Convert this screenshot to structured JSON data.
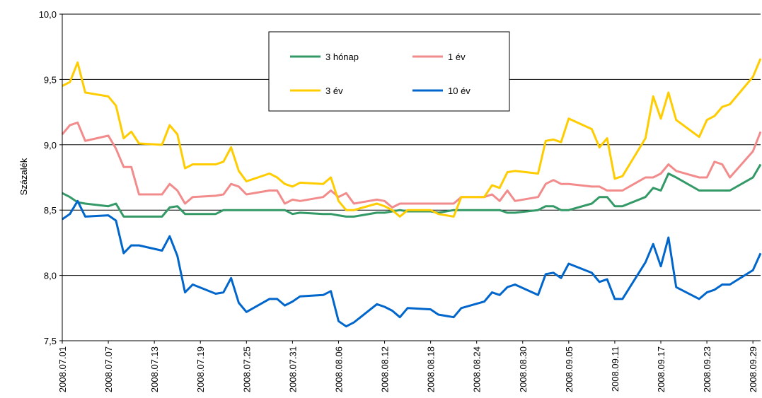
{
  "chart_data": {
    "type": "line",
    "ylabel": "Százalék",
    "ylim": [
      7.5,
      10.0
    ],
    "y_ticks": [
      "10,0",
      "9,5",
      "9,0",
      "8,5",
      "8,0",
      "7,5"
    ],
    "x_tick_labels": [
      "2008.07.01",
      "2008.07.07",
      "2008.07.13",
      "2008.07.19",
      "2008.07.25",
      "2008.07.31",
      "2008.08.06",
      "2008.08.12",
      "2008.08.18",
      "2008.08.24",
      "2008.08.30",
      "2008.09.05",
      "2008.09.11",
      "2008.09.17",
      "2008.09.23",
      "2008.09.29"
    ],
    "x_range": [
      "2008.07.01",
      "2008.09.30"
    ],
    "grid": "horizontal",
    "legend_position": "top-center",
    "series": [
      {
        "name": "3 hónap",
        "color": "#339966",
        "points": [
          [
            "2008.07.01",
            8.63
          ],
          [
            "2008.07.02",
            8.6
          ],
          [
            "2008.07.03",
            8.56
          ],
          [
            "2008.07.04",
            8.55
          ],
          [
            "2008.07.07",
            8.53
          ],
          [
            "2008.07.08",
            8.55
          ],
          [
            "2008.07.09",
            8.45
          ],
          [
            "2008.07.10",
            8.45
          ],
          [
            "2008.07.11",
            8.45
          ],
          [
            "2008.07.14",
            8.45
          ],
          [
            "2008.07.15",
            8.52
          ],
          [
            "2008.07.16",
            8.53
          ],
          [
            "2008.07.17",
            8.47
          ],
          [
            "2008.07.18",
            8.47
          ],
          [
            "2008.07.21",
            8.47
          ],
          [
            "2008.07.22",
            8.5
          ],
          [
            "2008.07.23",
            8.5
          ],
          [
            "2008.07.24",
            8.5
          ],
          [
            "2008.07.25",
            8.5
          ],
          [
            "2008.07.28",
            8.5
          ],
          [
            "2008.07.29",
            8.5
          ],
          [
            "2008.07.30",
            8.5
          ],
          [
            "2008.07.31",
            8.47
          ],
          [
            "2008.08.01",
            8.48
          ],
          [
            "2008.08.04",
            8.47
          ],
          [
            "2008.08.05",
            8.47
          ],
          [
            "2008.08.06",
            8.46
          ],
          [
            "2008.08.07",
            8.45
          ],
          [
            "2008.08.08",
            8.45
          ],
          [
            "2008.08.11",
            8.48
          ],
          [
            "2008.08.12",
            8.48
          ],
          [
            "2008.08.13",
            8.49
          ],
          [
            "2008.08.14",
            8.5
          ],
          [
            "2008.08.15",
            8.49
          ],
          [
            "2008.08.18",
            8.49
          ],
          [
            "2008.08.19",
            8.48
          ],
          [
            "2008.08.21",
            8.5
          ],
          [
            "2008.08.22",
            8.5
          ],
          [
            "2008.08.25",
            8.5
          ],
          [
            "2008.08.26",
            8.5
          ],
          [
            "2008.08.27",
            8.5
          ],
          [
            "2008.08.28",
            8.48
          ],
          [
            "2008.08.29",
            8.48
          ],
          [
            "2008.09.01",
            8.5
          ],
          [
            "2008.09.02",
            8.53
          ],
          [
            "2008.09.03",
            8.53
          ],
          [
            "2008.09.04",
            8.5
          ],
          [
            "2008.09.05",
            8.5
          ],
          [
            "2008.09.08",
            8.55
          ],
          [
            "2008.09.09",
            8.6
          ],
          [
            "2008.09.10",
            8.6
          ],
          [
            "2008.09.11",
            8.53
          ],
          [
            "2008.09.12",
            8.53
          ],
          [
            "2008.09.15",
            8.6
          ],
          [
            "2008.09.16",
            8.67
          ],
          [
            "2008.09.17",
            8.65
          ],
          [
            "2008.09.18",
            8.78
          ],
          [
            "2008.09.19",
            8.75
          ],
          [
            "2008.09.22",
            8.65
          ],
          [
            "2008.09.23",
            8.65
          ],
          [
            "2008.09.24",
            8.65
          ],
          [
            "2008.09.25",
            8.65
          ],
          [
            "2008.09.26",
            8.65
          ],
          [
            "2008.09.29",
            8.75
          ],
          [
            "2008.09.30",
            8.85
          ]
        ]
      },
      {
        "name": "1 év",
        "color": "#f28c8c",
        "points": [
          [
            "2008.07.01",
            9.08
          ],
          [
            "2008.07.02",
            9.15
          ],
          [
            "2008.07.03",
            9.17
          ],
          [
            "2008.07.04",
            9.03
          ],
          [
            "2008.07.07",
            9.07
          ],
          [
            "2008.07.08",
            8.97
          ],
          [
            "2008.07.09",
            8.83
          ],
          [
            "2008.07.10",
            8.83
          ],
          [
            "2008.07.11",
            8.62
          ],
          [
            "2008.07.14",
            8.62
          ],
          [
            "2008.07.15",
            8.7
          ],
          [
            "2008.07.16",
            8.65
          ],
          [
            "2008.07.17",
            8.55
          ],
          [
            "2008.07.18",
            8.6
          ],
          [
            "2008.07.21",
            8.61
          ],
          [
            "2008.07.22",
            8.62
          ],
          [
            "2008.07.23",
            8.7
          ],
          [
            "2008.07.24",
            8.68
          ],
          [
            "2008.07.25",
            8.62
          ],
          [
            "2008.07.28",
            8.65
          ],
          [
            "2008.07.29",
            8.65
          ],
          [
            "2008.07.30",
            8.55
          ],
          [
            "2008.07.31",
            8.58
          ],
          [
            "2008.08.01",
            8.57
          ],
          [
            "2008.08.04",
            8.6
          ],
          [
            "2008.08.05",
            8.65
          ],
          [
            "2008.08.06",
            8.6
          ],
          [
            "2008.08.07",
            8.63
          ],
          [
            "2008.08.08",
            8.55
          ],
          [
            "2008.08.11",
            8.58
          ],
          [
            "2008.08.12",
            8.57
          ],
          [
            "2008.08.13",
            8.52
          ],
          [
            "2008.08.14",
            8.55
          ],
          [
            "2008.08.15",
            8.55
          ],
          [
            "2008.08.18",
            8.55
          ],
          [
            "2008.08.19",
            8.55
          ],
          [
            "2008.08.21",
            8.55
          ],
          [
            "2008.08.22",
            8.6
          ],
          [
            "2008.08.25",
            8.6
          ],
          [
            "2008.08.26",
            8.62
          ],
          [
            "2008.08.27",
            8.57
          ],
          [
            "2008.08.28",
            8.65
          ],
          [
            "2008.08.29",
            8.57
          ],
          [
            "2008.09.01",
            8.6
          ],
          [
            "2008.09.02",
            8.7
          ],
          [
            "2008.09.03",
            8.73
          ],
          [
            "2008.09.04",
            8.7
          ],
          [
            "2008.09.05",
            8.7
          ],
          [
            "2008.09.08",
            8.68
          ],
          [
            "2008.09.09",
            8.68
          ],
          [
            "2008.09.10",
            8.65
          ],
          [
            "2008.09.11",
            8.65
          ],
          [
            "2008.09.12",
            8.65
          ],
          [
            "2008.09.15",
            8.75
          ],
          [
            "2008.09.16",
            8.75
          ],
          [
            "2008.09.17",
            8.78
          ],
          [
            "2008.09.18",
            8.85
          ],
          [
            "2008.09.19",
            8.8
          ],
          [
            "2008.09.22",
            8.75
          ],
          [
            "2008.09.23",
            8.75
          ],
          [
            "2008.09.24",
            8.87
          ],
          [
            "2008.09.25",
            8.85
          ],
          [
            "2008.09.26",
            8.75
          ],
          [
            "2008.09.29",
            8.95
          ],
          [
            "2008.09.30",
            9.1
          ]
        ]
      },
      {
        "name": "3 év",
        "color": "#ffcc00",
        "points": [
          [
            "2008.07.01",
            9.45
          ],
          [
            "2008.07.02",
            9.48
          ],
          [
            "2008.07.03",
            9.63
          ],
          [
            "2008.07.04",
            9.4
          ],
          [
            "2008.07.07",
            9.37
          ],
          [
            "2008.07.08",
            9.3
          ],
          [
            "2008.07.09",
            9.05
          ],
          [
            "2008.07.10",
            9.1
          ],
          [
            "2008.07.11",
            9.01
          ],
          [
            "2008.07.14",
            9.0
          ],
          [
            "2008.07.15",
            9.15
          ],
          [
            "2008.07.16",
            9.08
          ],
          [
            "2008.07.17",
            8.82
          ],
          [
            "2008.07.18",
            8.85
          ],
          [
            "2008.07.21",
            8.85
          ],
          [
            "2008.07.22",
            8.87
          ],
          [
            "2008.07.23",
            8.98
          ],
          [
            "2008.07.24",
            8.8
          ],
          [
            "2008.07.25",
            8.72
          ],
          [
            "2008.07.28",
            8.78
          ],
          [
            "2008.07.29",
            8.75
          ],
          [
            "2008.07.30",
            8.7
          ],
          [
            "2008.07.31",
            8.68
          ],
          [
            "2008.08.01",
            8.71
          ],
          [
            "2008.08.04",
            8.7
          ],
          [
            "2008.08.05",
            8.75
          ],
          [
            "2008.08.06",
            8.57
          ],
          [
            "2008.08.07",
            8.5
          ],
          [
            "2008.08.08",
            8.5
          ],
          [
            "2008.08.11",
            8.55
          ],
          [
            "2008.08.12",
            8.53
          ],
          [
            "2008.08.13",
            8.5
          ],
          [
            "2008.08.14",
            8.45
          ],
          [
            "2008.08.15",
            8.5
          ],
          [
            "2008.08.18",
            8.5
          ],
          [
            "2008.08.19",
            8.47
          ],
          [
            "2008.08.21",
            8.45
          ],
          [
            "2008.08.22",
            8.6
          ],
          [
            "2008.08.25",
            8.6
          ],
          [
            "2008.08.26",
            8.69
          ],
          [
            "2008.08.27",
            8.67
          ],
          [
            "2008.08.28",
            8.79
          ],
          [
            "2008.08.29",
            8.8
          ],
          [
            "2008.09.01",
            8.78
          ],
          [
            "2008.09.02",
            9.03
          ],
          [
            "2008.09.03",
            9.04
          ],
          [
            "2008.09.04",
            9.02
          ],
          [
            "2008.09.05",
            9.2
          ],
          [
            "2008.09.08",
            9.12
          ],
          [
            "2008.09.09",
            8.98
          ],
          [
            "2008.09.10",
            9.05
          ],
          [
            "2008.09.11",
            8.74
          ],
          [
            "2008.09.12",
            8.76
          ],
          [
            "2008.09.15",
            9.05
          ],
          [
            "2008.09.16",
            9.37
          ],
          [
            "2008.09.17",
            9.2
          ],
          [
            "2008.09.18",
            9.4
          ],
          [
            "2008.09.19",
            9.19
          ],
          [
            "2008.09.22",
            9.06
          ],
          [
            "2008.09.23",
            9.19
          ],
          [
            "2008.09.24",
            9.22
          ],
          [
            "2008.09.25",
            9.29
          ],
          [
            "2008.09.26",
            9.31
          ],
          [
            "2008.09.29",
            9.52
          ],
          [
            "2008.09.30",
            9.66
          ]
        ]
      },
      {
        "name": "10 év",
        "color": "#0066cc",
        "points": [
          [
            "2008.07.01",
            8.43
          ],
          [
            "2008.07.02",
            8.47
          ],
          [
            "2008.07.03",
            8.57
          ],
          [
            "2008.07.04",
            8.45
          ],
          [
            "2008.07.07",
            8.46
          ],
          [
            "2008.07.08",
            8.42
          ],
          [
            "2008.07.09",
            8.17
          ],
          [
            "2008.07.10",
            8.23
          ],
          [
            "2008.07.11",
            8.23
          ],
          [
            "2008.07.14",
            8.19
          ],
          [
            "2008.07.15",
            8.3
          ],
          [
            "2008.07.16",
            8.15
          ],
          [
            "2008.07.17",
            7.87
          ],
          [
            "2008.07.18",
            7.93
          ],
          [
            "2008.07.21",
            7.86
          ],
          [
            "2008.07.22",
            7.87
          ],
          [
            "2008.07.23",
            7.98
          ],
          [
            "2008.07.24",
            7.79
          ],
          [
            "2008.07.25",
            7.72
          ],
          [
            "2008.07.28",
            7.82
          ],
          [
            "2008.07.29",
            7.82
          ],
          [
            "2008.07.30",
            7.77
          ],
          [
            "2008.07.31",
            7.8
          ],
          [
            "2008.08.01",
            7.84
          ],
          [
            "2008.08.04",
            7.85
          ],
          [
            "2008.08.05",
            7.88
          ],
          [
            "2008.08.06",
            7.65
          ],
          [
            "2008.08.07",
            7.61
          ],
          [
            "2008.08.08",
            7.64
          ],
          [
            "2008.08.11",
            7.78
          ],
          [
            "2008.08.12",
            7.76
          ],
          [
            "2008.08.13",
            7.73
          ],
          [
            "2008.08.14",
            7.68
          ],
          [
            "2008.08.15",
            7.75
          ],
          [
            "2008.08.18",
            7.74
          ],
          [
            "2008.08.19",
            7.7
          ],
          [
            "2008.08.21",
            7.68
          ],
          [
            "2008.08.22",
            7.75
          ],
          [
            "2008.08.25",
            7.8
          ],
          [
            "2008.08.26",
            7.87
          ],
          [
            "2008.08.27",
            7.85
          ],
          [
            "2008.08.28",
            7.91
          ],
          [
            "2008.08.29",
            7.93
          ],
          [
            "2008.09.01",
            7.85
          ],
          [
            "2008.09.02",
            8.01
          ],
          [
            "2008.09.03",
            8.02
          ],
          [
            "2008.09.04",
            7.98
          ],
          [
            "2008.09.05",
            8.09
          ],
          [
            "2008.09.08",
            8.02
          ],
          [
            "2008.09.09",
            7.95
          ],
          [
            "2008.09.10",
            7.97
          ],
          [
            "2008.09.11",
            7.82
          ],
          [
            "2008.09.12",
            7.82
          ],
          [
            "2008.09.15",
            8.1
          ],
          [
            "2008.09.16",
            8.24
          ],
          [
            "2008.09.17",
            8.07
          ],
          [
            "2008.09.18",
            8.29
          ],
          [
            "2008.09.19",
            7.91
          ],
          [
            "2008.09.22",
            7.82
          ],
          [
            "2008.09.23",
            7.87
          ],
          [
            "2008.09.24",
            7.89
          ],
          [
            "2008.09.25",
            7.93
          ],
          [
            "2008.09.26",
            7.93
          ],
          [
            "2008.09.29",
            8.04
          ],
          [
            "2008.09.30",
            8.17
          ]
        ]
      }
    ]
  }
}
